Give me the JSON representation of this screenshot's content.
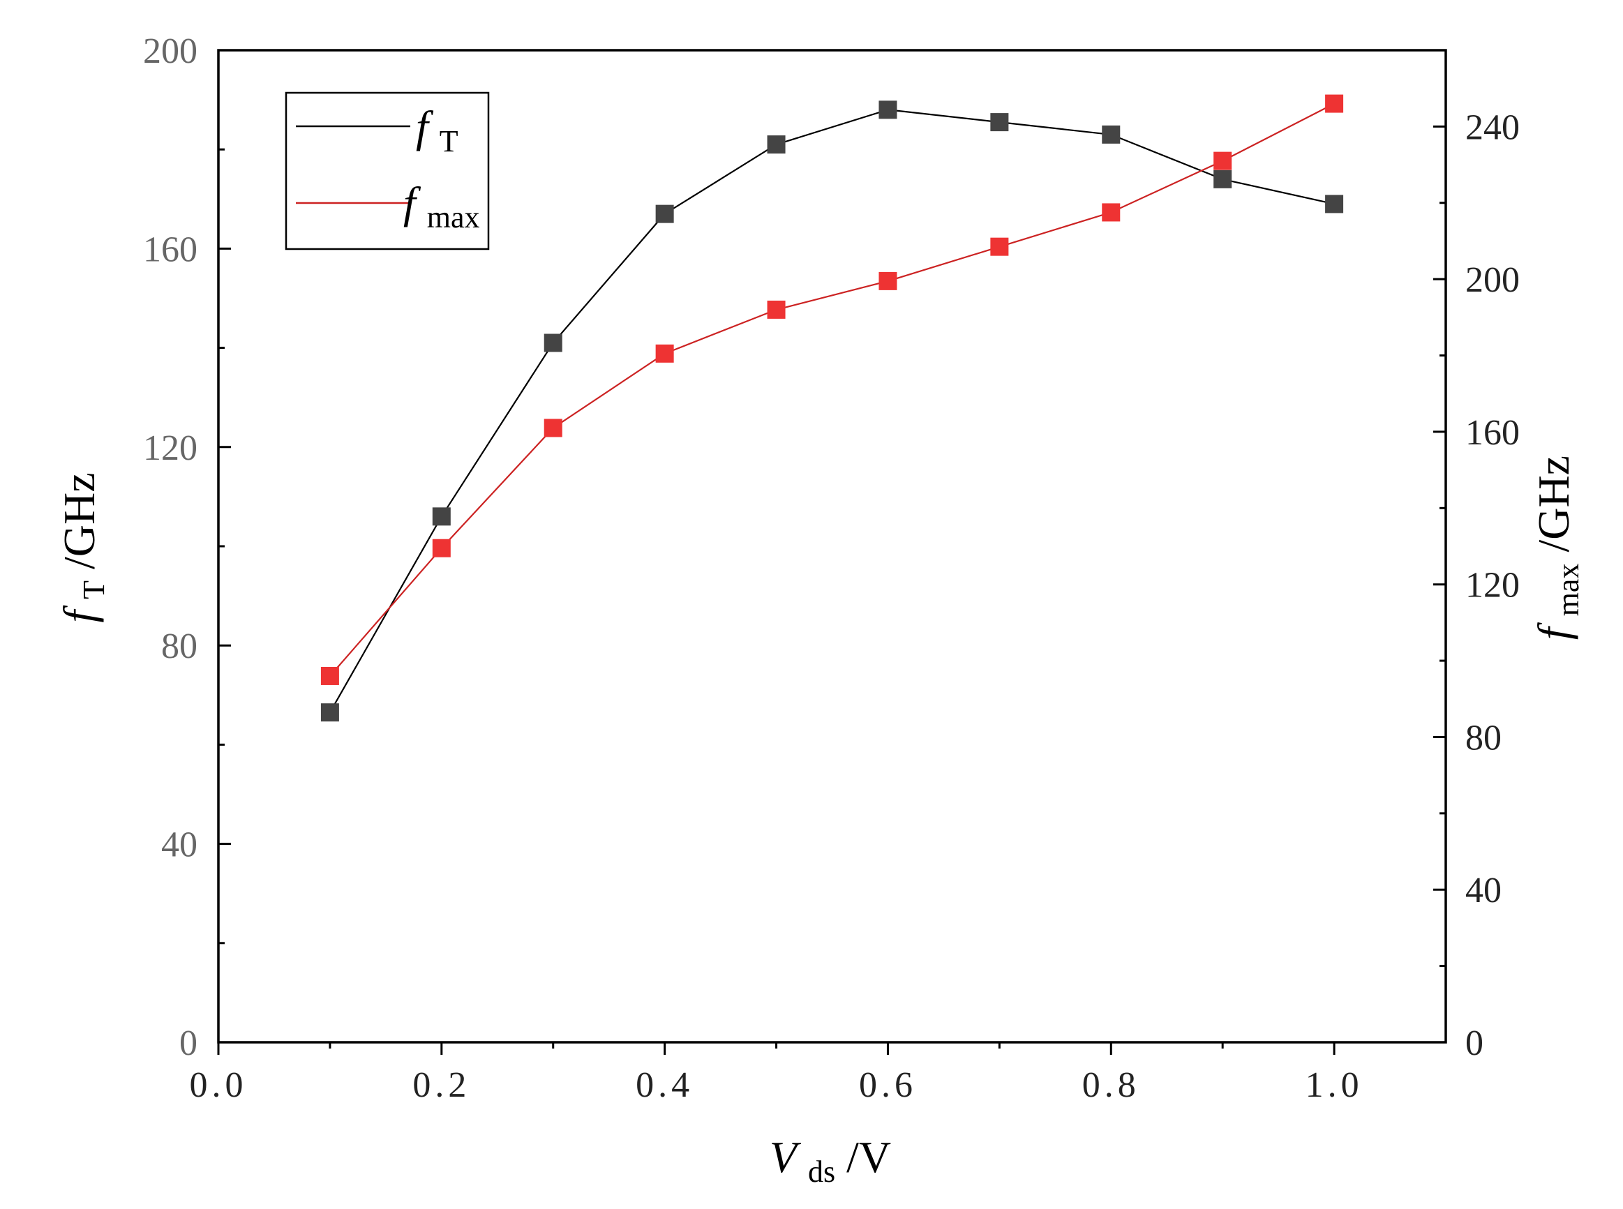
{
  "colors": {
    "axis": "#000000",
    "left_tick_label": "#666666",
    "right_tick_label": "#222222",
    "bottom_tick_label": "#222222",
    "ft_line": "#000000",
    "ft_marker": "#444444",
    "fmax_line": "#cc2222",
    "fmax_marker": "#ee3333"
  },
  "chart_data": {
    "type": "line",
    "x": [
      0.1,
      0.2,
      0.3,
      0.4,
      0.5,
      0.6,
      0.7,
      0.8,
      0.9,
      1.0
    ],
    "xlim": [
      0.0,
      1.1
    ],
    "ylim_left": [
      0,
      200
    ],
    "ylim_right": [
      0,
      260
    ],
    "xticks": [
      "0.0",
      "0.2",
      "0.4",
      "0.6",
      "0.8",
      "1.0"
    ],
    "xtick_values": [
      0.0,
      0.2,
      0.4,
      0.6,
      0.8,
      1.0
    ],
    "yticks_left": [
      "0",
      "40",
      "80",
      "120",
      "160",
      "200"
    ],
    "ytick_values_left": [
      0,
      40,
      80,
      120,
      160,
      200
    ],
    "yticks_right": [
      "0",
      "40",
      "80",
      "120",
      "160",
      "200",
      "240"
    ],
    "ytick_values_right": [
      0,
      40,
      80,
      120,
      160,
      200,
      240
    ],
    "xlabel": {
      "main": "V",
      "sub": "ds",
      "tail": "/V"
    },
    "ylabel_left": {
      "main": "f",
      "sub": "T",
      "tail": "/GHz"
    },
    "ylabel_right": {
      "main": "f",
      "sub": "max",
      "tail": "/GHz"
    },
    "grid": false,
    "legend_position": "top-left",
    "series": [
      {
        "name": {
          "main": "f",
          "sub": "T"
        },
        "axis": "left",
        "values": [
          66.5,
          106,
          141,
          167,
          181,
          188,
          185.5,
          183,
          174,
          169
        ]
      },
      {
        "name": {
          "main": "f",
          "sub": "max"
        },
        "axis": "right",
        "values": [
          96,
          129.5,
          161,
          180.5,
          192,
          199.5,
          208.5,
          217.5,
          231,
          246
        ]
      }
    ]
  }
}
